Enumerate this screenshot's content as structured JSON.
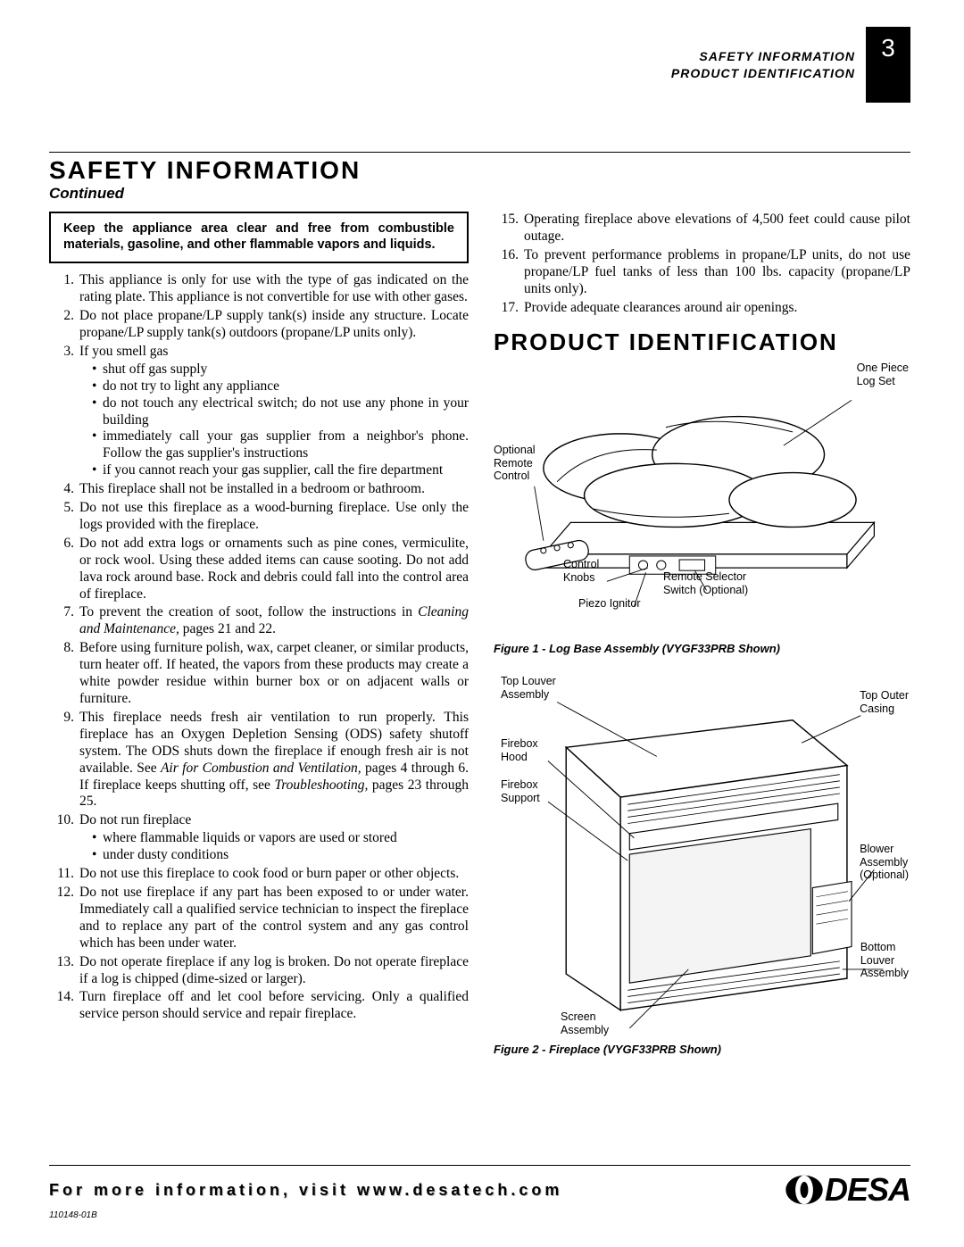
{
  "header": {
    "line1": "SAFETY INFORMATION",
    "line2": "PRODUCT IDENTIFICATION",
    "page_number": "3"
  },
  "safety": {
    "title": "SAFETY INFORMATION",
    "continued": "Continued",
    "warning": "Keep the appliance area clear and free from combustible materials, gasoline, and other flammable vapors and liquids.",
    "items_left": [
      {
        "n": 1,
        "text": "This appliance is only for use with the type of gas indicated on the rating plate. This appliance is not convertible for use with other gases."
      },
      {
        "n": 2,
        "text": "Do not place propane/LP supply tank(s) inside any structure. Locate propane/LP supply tank(s) outdoors (propane/LP units only)."
      },
      {
        "n": 3,
        "text": "If you smell gas",
        "sub": [
          "shut off gas supply",
          "do not try to light any appliance",
          "do not touch any electrical switch; do not use any phone in your building",
          "immediately call your gas supplier from a neighbor's phone. Follow the gas supplier's instructions",
          "if you cannot reach your gas supplier, call the fire department"
        ]
      },
      {
        "n": 4,
        "text": "This fireplace shall not be installed in a bedroom or bathroom."
      },
      {
        "n": 5,
        "text": "Do not use this fireplace as a wood-burning fireplace. Use only the logs provided with the fireplace."
      },
      {
        "n": 6,
        "text": "Do not add extra logs or ornaments such as pine cones, vermiculite, or rock wool. Using these added items can cause sooting. Do not add lava rock around base. Rock and debris could fall into the control area of fireplace."
      },
      {
        "n": 7,
        "pre": "To prevent the creation of soot, follow the instructions in ",
        "ital": "Cleaning and Maintenance,",
        "post": " pages 21 and 22."
      },
      {
        "n": 8,
        "text": "Before using furniture polish, wax, carpet cleaner, or similar products, turn heater off. If heated, the vapors from these products may create a white powder residue within burner box or on adjacent walls or furniture."
      },
      {
        "n": 9,
        "pre": "This fireplace needs fresh air ventilation to run properly. This fireplace has an Oxygen Depletion Sensing (ODS) safety shutoff system. The ODS shuts down the fireplace if enough fresh air is not available. See ",
        "ital": "Air for Combustion and Ventilation,",
        "mid": " pages 4 through 6. If fireplace keeps shutting off, see ",
        "ital2": "Troubleshooting,",
        "post": " pages 23 through 25."
      },
      {
        "n": 10,
        "text": "Do not run fireplace",
        "sub": [
          "where flammable liquids or vapors are used or stored",
          "under dusty conditions"
        ]
      },
      {
        "n": 11,
        "text": "Do not use this fireplace to cook food or burn paper or other objects."
      },
      {
        "n": 12,
        "text": "Do not use fireplace if any part has been exposed to or under water. Immediately call a qualified service technician to inspect the fireplace and to replace any part of the control system and any gas control which has been under water."
      },
      {
        "n": 13,
        "text": "Do not operate fireplace if any log is broken. Do not operate fireplace if a log is chipped (dime-sized or larger)."
      },
      {
        "n": 14,
        "text": "Turn fireplace off and let cool before servicing. Only a qualified service person should service and repair fireplace."
      }
    ],
    "items_right": [
      {
        "n": 15,
        "text": "Operating fireplace above elevations of 4,500 feet could cause pilot outage."
      },
      {
        "n": 16,
        "text": "To prevent performance problems in propane/LP units, do not use propane/LP fuel tanks of less than 100 lbs. capacity (propane/LP units only)."
      },
      {
        "n": 17,
        "text": "Provide adequate clearances around air openings."
      }
    ]
  },
  "product_id": {
    "title": "PRODUCT IDENTIFICATION",
    "fig1": {
      "caption": "Figure 1 - Log Base Assembly (VYGF33PRB Shown)",
      "callouts": {
        "one_piece_log_set": "One Piece\nLog Set",
        "optional_remote": "Optional\nRemote\nControl",
        "control_knobs": "Control\nKnobs",
        "piezo": "Piezo Ignitor",
        "remote_selector": "Remote Selector\nSwitch (Optional)"
      }
    },
    "fig2": {
      "caption": "Figure 2 - Fireplace (VYGF33PRB Shown)",
      "callouts": {
        "top_louver": "Top Louver\nAssembly",
        "firebox_hood": "Firebox\nHood",
        "firebox_support": "Firebox\nSupport",
        "top_outer_casing": "Top Outer\nCasing",
        "blower": "Blower\nAssembly\n(Optional)",
        "bottom_louver": "Bottom\nLouver\nAssembly",
        "screen": "Screen\nAssembly"
      }
    }
  },
  "footer": {
    "text": "For more information, visit www.desatech.com",
    "brand": "DESA",
    "docnum": "110148-01B"
  },
  "colors": {
    "black": "#000000",
    "white": "#ffffff",
    "gray_shadow": "#bbbbbb"
  }
}
